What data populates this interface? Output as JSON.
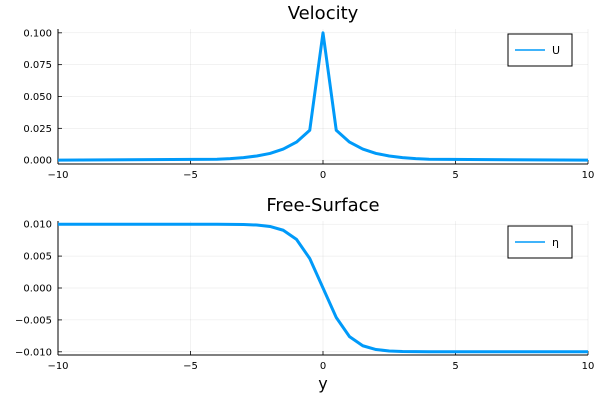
{
  "chart_data": [
    {
      "type": "line",
      "title": "Velocity",
      "xlabel": "",
      "ylabel": "",
      "xlim": [
        -10,
        10
      ],
      "ylim": [
        -0.003,
        0.103
      ],
      "xticks": [
        -10,
        -5,
        0,
        5,
        10
      ],
      "xtick_labels": [
        "−10",
        "−5",
        "0",
        "5",
        "10"
      ],
      "yticks": [
        0,
        0.025,
        0.05,
        0.075,
        0.1
      ],
      "ytick_labels": [
        "0.000",
        "0.025",
        "0.050",
        "0.075",
        "0.100"
      ],
      "grid": true,
      "legend_position": "top-right",
      "series": [
        {
          "name": "U",
          "color": "#009af9",
          "x": [
            -10,
            -4,
            -3.5,
            -3,
            -2.5,
            -2,
            -1.5,
            -1,
            -0.5,
            0,
            0.5,
            1,
            1.5,
            2,
            2.5,
            3,
            3.5,
            4,
            10
          ],
          "y": [
            0,
            0.0007,
            0.0012,
            0.002,
            0.0033,
            0.0053,
            0.0087,
            0.0142,
            0.0235,
            0.1,
            0.0235,
            0.0142,
            0.0087,
            0.0053,
            0.0033,
            0.002,
            0.0012,
            0.0007,
            0
          ]
        }
      ]
    },
    {
      "type": "line",
      "title": "Free-Surface",
      "xlabel": "y",
      "ylabel": "",
      "xlim": [
        -10,
        10
      ],
      "ylim": [
        -0.0105,
        0.0105
      ],
      "xticks": [
        -10,
        -5,
        0,
        5,
        10
      ],
      "xtick_labels": [
        "−10",
        "−5",
        "0",
        "5",
        "10"
      ],
      "yticks": [
        -0.01,
        -0.005,
        0,
        0.005,
        0.01
      ],
      "ytick_labels": [
        "−0.010",
        "−0.005",
        "0.000",
        "0.005",
        "0.010"
      ],
      "grid": true,
      "legend_position": "top-right",
      "series": [
        {
          "name": "η",
          "color": "#009af9",
          "x": [
            -10,
            -4,
            -3.5,
            -3,
            -2.5,
            -2,
            -1.5,
            -1,
            -0.5,
            0,
            0.5,
            1,
            1.5,
            2,
            2.5,
            3,
            3.5,
            4,
            10
          ],
          "y": [
            0.01,
            0.00999,
            0.00998,
            0.00995,
            0.00987,
            0.00964,
            0.00905,
            0.00762,
            0.00462,
            0,
            -0.00462,
            -0.00762,
            -0.00905,
            -0.00964,
            -0.00987,
            -0.00995,
            -0.00998,
            -0.00999,
            -0.01
          ]
        }
      ]
    }
  ]
}
